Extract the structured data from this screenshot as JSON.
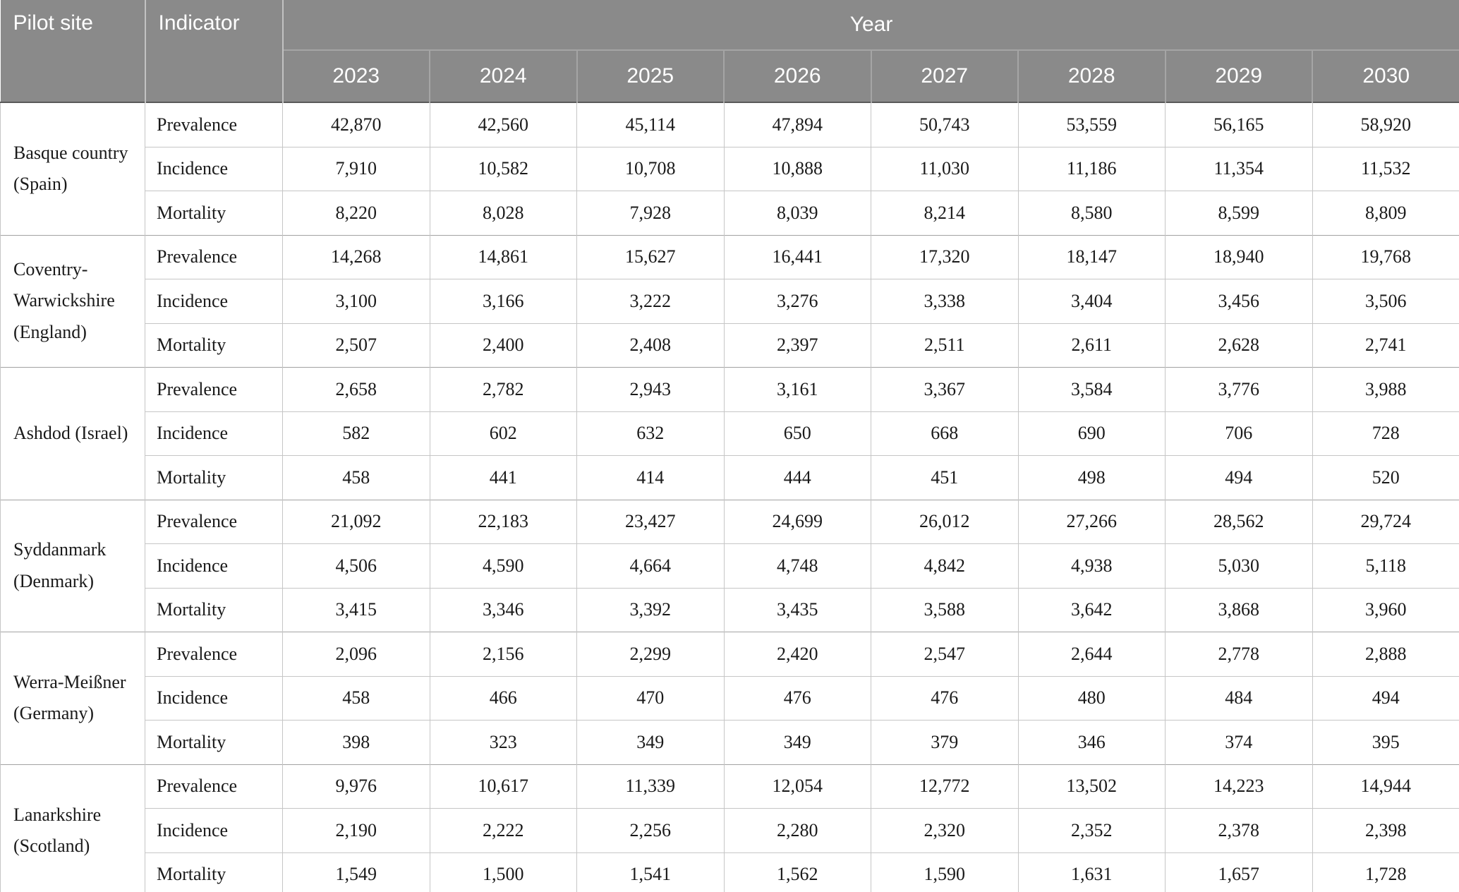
{
  "table": {
    "headers": {
      "pilot_site": "Pilot site",
      "indicator": "Indicator",
      "year": "Year"
    },
    "years": [
      "2023",
      "2024",
      "2025",
      "2026",
      "2027",
      "2028",
      "2029",
      "2030"
    ],
    "indicator_labels": [
      "Prevalence",
      "Incidence",
      "Mortality"
    ],
    "sites": [
      {
        "name": "Basque country (Spain)",
        "indicators": [
          {
            "label": "Prevalence",
            "values": [
              "42,870",
              "42,560",
              "45,114",
              "47,894",
              "50,743",
              "53,559",
              "56,165",
              "58,920"
            ]
          },
          {
            "label": "Incidence",
            "values": [
              "7,910",
              "10,582",
              "10,708",
              "10,888",
              "11,030",
              "11,186",
              "11,354",
              "11,532"
            ]
          },
          {
            "label": "Mortality",
            "values": [
              "8,220",
              "8,028",
              "7,928",
              "8,039",
              "8,214",
              "8,580",
              "8,599",
              "8,809"
            ]
          }
        ]
      },
      {
        "name": "Coventry-Warwickshire (England)",
        "indicators": [
          {
            "label": "Prevalence",
            "values": [
              "14,268",
              "14,861",
              "15,627",
              "16,441",
              "17,320",
              "18,147",
              "18,940",
              "19,768"
            ]
          },
          {
            "label": "Incidence",
            "values": [
              "3,100",
              "3,166",
              "3,222",
              "3,276",
              "3,338",
              "3,404",
              "3,456",
              "3,506"
            ]
          },
          {
            "label": "Mortality",
            "values": [
              "2,507",
              "2,400",
              "2,408",
              "2,397",
              "2,511",
              "2,611",
              "2,628",
              "2,741"
            ]
          }
        ]
      },
      {
        "name": "Ashdod (Israel)",
        "indicators": [
          {
            "label": "Prevalence",
            "values": [
              "2,658",
              "2,782",
              "2,943",
              "3,161",
              "3,367",
              "3,584",
              "3,776",
              "3,988"
            ]
          },
          {
            "label": "Incidence",
            "values": [
              "582",
              "602",
              "632",
              "650",
              "668",
              "690",
              "706",
              "728"
            ]
          },
          {
            "label": "Mortality",
            "values": [
              "458",
              "441",
              "414",
              "444",
              "451",
              "498",
              "494",
              "520"
            ]
          }
        ]
      },
      {
        "name": "Syddanmark (Denmark)",
        "indicators": [
          {
            "label": "Prevalence",
            "values": [
              "21,092",
              "22,183",
              "23,427",
              "24,699",
              "26,012",
              "27,266",
              "28,562",
              "29,724"
            ]
          },
          {
            "label": "Incidence",
            "values": [
              "4,506",
              "4,590",
              "4,664",
              "4,748",
              "4,842",
              "4,938",
              "5,030",
              "5,118"
            ]
          },
          {
            "label": "Mortality",
            "values": [
              "3,415",
              "3,346",
              "3,392",
              "3,435",
              "3,588",
              "3,642",
              "3,868",
              "3,960"
            ]
          }
        ]
      },
      {
        "name": "Werra-Meißner (Germany)",
        "indicators": [
          {
            "label": "Prevalence",
            "values": [
              "2,096",
              "2,156",
              "2,299",
              "2,420",
              "2,547",
              "2,644",
              "2,778",
              "2,888"
            ]
          },
          {
            "label": "Incidence",
            "values": [
              "458",
              "466",
              "470",
              "476",
              "476",
              "480",
              "484",
              "494"
            ]
          },
          {
            "label": "Mortality",
            "values": [
              "398",
              "323",
              "349",
              "349",
              "379",
              "346",
              "374",
              "395"
            ]
          }
        ]
      },
      {
        "name": "Lanarkshire (Scotland)",
        "indicators": [
          {
            "label": "Prevalence",
            "values": [
              "9,976",
              "10,617",
              "11,339",
              "12,054",
              "12,772",
              "13,502",
              "14,223",
              "14,944"
            ]
          },
          {
            "label": "Incidence",
            "values": [
              "2,190",
              "2,222",
              "2,256",
              "2,280",
              "2,320",
              "2,352",
              "2,378",
              "2,398"
            ]
          },
          {
            "label": "Mortality",
            "values": [
              "1,549",
              "1,500",
              "1,541",
              "1,562",
              "1,590",
              "1,631",
              "1,657",
              "1,728"
            ]
          }
        ]
      }
    ]
  },
  "colors": {
    "header_bg": "#8a8a8a",
    "header_text": "#ffffff",
    "body_text": "#1a1a1a",
    "grid_line": "#c6c6c6",
    "group_line": "#a2a2a2"
  }
}
